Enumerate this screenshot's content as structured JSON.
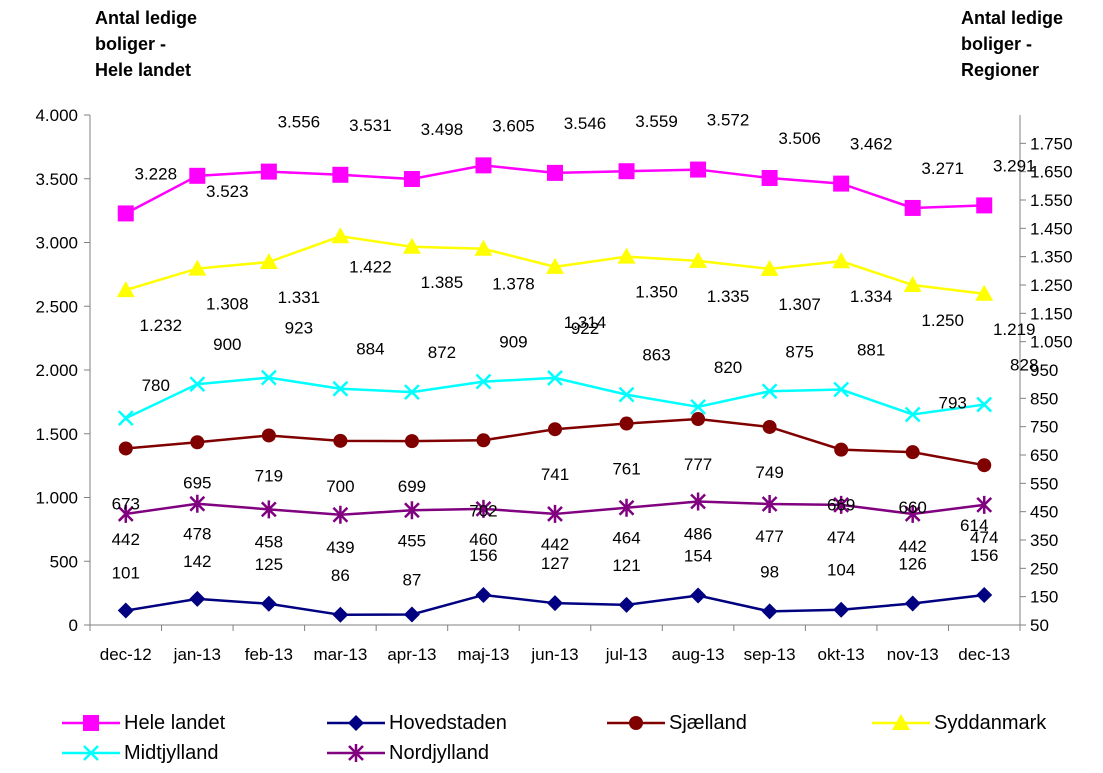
{
  "left_axis_title": "Antal ledige\nboliger -\nHele landet",
  "right_axis_title": "Antal ledige\n boliger -\n Regioner",
  "chart_data": {
    "type": "line",
    "categories": [
      "dec-12",
      "jan-13",
      "feb-13",
      "mar-13",
      "apr-13",
      "maj-13",
      "jun-13",
      "jul-13",
      "aug-13",
      "sep-13",
      "okt-13",
      "nov-13",
      "dec-13"
    ],
    "y_left": {
      "ylim": [
        0,
        4000
      ],
      "ticks": [
        "0",
        "500",
        "1.000",
        "1.500",
        "2.000",
        "2.500",
        "3.000",
        "3.500",
        "4.000"
      ],
      "tick_values": [
        0,
        500,
        1000,
        1500,
        2000,
        2500,
        3000,
        3500,
        4000
      ]
    },
    "y_right": {
      "ylim": [
        50,
        1850
      ],
      "ticks": [
        "50",
        "150",
        "250",
        "350",
        "450",
        "550",
        "650",
        "750",
        "850",
        "950",
        "1.050",
        "1.150",
        "1.250",
        "1.350",
        "1.450",
        "1.550",
        "1.650",
        "1.750"
      ],
      "tick_values": [
        50,
        150,
        250,
        350,
        450,
        550,
        650,
        750,
        850,
        950,
        1050,
        1150,
        1250,
        1350,
        1450,
        1550,
        1650,
        1750
      ]
    },
    "series": [
      {
        "name": "Hele landet",
        "axis": "left",
        "color": "#FF00FF",
        "marker": "square",
        "values": [
          3228,
          3523,
          3556,
          3531,
          3498,
          3605,
          3546,
          3559,
          3572,
          3506,
          3462,
          3271,
          3291
        ],
        "labels": [
          "3.228",
          "3.523",
          "3.556",
          "3.531",
          "3.498",
          "3.605",
          "3.546",
          "3.559",
          "3.572",
          "3.506",
          "3.462",
          "3.271",
          "3.291"
        ]
      },
      {
        "name": "Hovedstaden",
        "axis": "right",
        "color": "#000080",
        "marker": "diamond",
        "values": [
          101,
          142,
          125,
          86,
          87,
          156,
          127,
          121,
          154,
          98,
          104,
          126,
          156
        ],
        "labels": [
          "101",
          "142",
          "125",
          "86",
          "87",
          "156",
          "127",
          "121",
          "154",
          "98",
          "104",
          "126",
          "156"
        ]
      },
      {
        "name": "Sjælland",
        "axis": "right",
        "color": "#800000",
        "marker": "circle",
        "values": [
          673,
          695,
          719,
          700,
          699,
          702,
          741,
          761,
          777,
          749,
          669,
          660,
          614
        ],
        "labels": [
          "673",
          "695",
          "719",
          "700",
          "699",
          "702",
          "741",
          "761",
          "777",
          "749",
          "669",
          "660",
          "614"
        ]
      },
      {
        "name": "Syddanmark",
        "axis": "right",
        "color": "#FFFF00",
        "marker": "triangle",
        "values": [
          1232,
          1308,
          1331,
          1422,
          1385,
          1378,
          1314,
          1350,
          1335,
          1307,
          1334,
          1250,
          1219
        ],
        "labels": [
          "1.232",
          "1.308",
          "1.331",
          "1.422",
          "1.385",
          "1.378",
          "1.314",
          "1.350",
          "1.335",
          "1.307",
          "1.334",
          "1.250",
          "1.219"
        ]
      },
      {
        "name": "Midtjylland",
        "axis": "right",
        "color": "#00FFFF",
        "marker": "x",
        "values": [
          780,
          900,
          923,
          884,
          872,
          909,
          922,
          863,
          820,
          875,
          881,
          793,
          828
        ],
        "labels": [
          "780",
          "900",
          "923",
          "884",
          "872",
          "909",
          "922",
          "863",
          "820",
          "875",
          "881",
          "793",
          "828"
        ]
      },
      {
        "name": "Nordjylland",
        "axis": "right",
        "color": "#800080",
        "marker": "star",
        "values": [
          442,
          478,
          458,
          439,
          455,
          460,
          442,
          464,
          486,
          477,
          474,
          442,
          474
        ],
        "labels": [
          "442",
          "478",
          "458",
          "439",
          "455",
          "460",
          "442",
          "464",
          "486",
          "477",
          "474",
          "442",
          "474"
        ]
      }
    ],
    "legend_position": "bottom",
    "grid": false
  }
}
